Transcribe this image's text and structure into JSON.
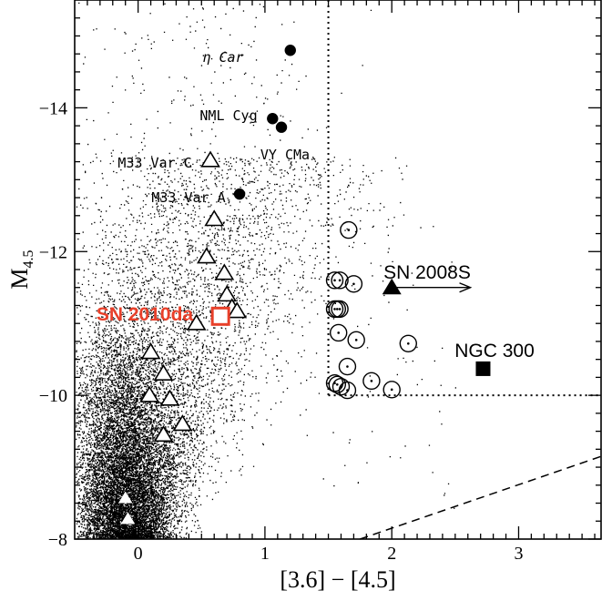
{
  "chart_data": {
    "type": "scatter",
    "xlabel": "[3.6] − [4.5]",
    "ylabel_main": "M",
    "ylabel_sub": "4.5",
    "xlim": [
      -0.5,
      3.65
    ],
    "ylim": [
      -8,
      -15.5
    ],
    "xticks": [
      {
        "value": 0,
        "label": "0"
      },
      {
        "value": 1,
        "label": "1"
      },
      {
        "value": 2,
        "label": "2"
      },
      {
        "value": 3,
        "label": "3"
      }
    ],
    "yticks": [
      {
        "value": -8,
        "label": "−8"
      },
      {
        "value": -10,
        "label": "−10"
      },
      {
        "value": -12,
        "label": "−12"
      },
      {
        "value": -14,
        "label": "−14"
      }
    ],
    "background_population": {
      "marker": "dot",
      "color": "#000000",
      "core_x": -0.12,
      "core_y": -8.4
    },
    "cut_lines": {
      "vertical_x": 1.5,
      "horizontal_y": -10,
      "dashed_line": [
        [
          1.75,
          -8
        ],
        [
          3.65,
          -9.15
        ]
      ]
    },
    "filled_circles": [
      {
        "label": "η Car",
        "x": 1.2,
        "y": -14.8
      },
      {
        "label": "NML Cyg",
        "x": 1.06,
        "y": -13.85
      },
      {
        "label": "VY CMa",
        "x": 1.13,
        "y": -13.73
      },
      {
        "label": "M33 Var A",
        "x": 0.8,
        "y": -12.8
      }
    ],
    "open_triangles": [
      {
        "label": "M33 Var C",
        "x": 0.57,
        "y": -13.27
      },
      {
        "x": 0.6,
        "y": -12.45
      },
      {
        "x": 0.54,
        "y": -11.93
      },
      {
        "x": 0.68,
        "y": -11.7
      },
      {
        "x": 0.7,
        "y": -11.4
      },
      {
        "x": 0.74,
        "y": -11.22
      },
      {
        "x": 0.78,
        "y": -11.17
      },
      {
        "x": 0.46,
        "y": -11.0
      },
      {
        "x": 0.1,
        "y": -10.6
      },
      {
        "x": 0.2,
        "y": -10.3
      },
      {
        "x": 0.09,
        "y": -10.0
      },
      {
        "x": 0.25,
        "y": -9.95
      },
      {
        "x": 0.35,
        "y": -9.6
      },
      {
        "x": 0.2,
        "y": -9.45
      }
    ],
    "filled_triangles_small": [
      {
        "x": -0.1,
        "y": -8.57
      },
      {
        "x": -0.08,
        "y": -8.28
      }
    ],
    "open_circles_dotted": [
      {
        "x": 1.66,
        "y": -12.3
      },
      {
        "x": 1.55,
        "y": -11.6
      },
      {
        "x": 1.59,
        "y": -11.6
      },
      {
        "x": 1.7,
        "y": -11.55
      },
      {
        "x": 1.55,
        "y": -11.2
      },
      {
        "x": 1.57,
        "y": -11.2
      },
      {
        "x": 1.59,
        "y": -11.2
      },
      {
        "x": 1.58,
        "y": -10.87
      },
      {
        "x": 1.72,
        "y": -10.77
      },
      {
        "x": 2.13,
        "y": -10.72
      },
      {
        "x": 1.65,
        "y": -10.4
      },
      {
        "x": 1.55,
        "y": -10.17
      },
      {
        "x": 1.57,
        "y": -10.15
      },
      {
        "x": 1.6,
        "y": -10.12
      },
      {
        "x": 1.84,
        "y": -10.2
      },
      {
        "x": 1.65,
        "y": -10.07
      },
      {
        "x": 2.0,
        "y": -10.08
      }
    ],
    "highlight": {
      "label": "SN 2010da",
      "x": 0.65,
      "y": -11.1,
      "color": "#e8402a"
    },
    "sn2008s": {
      "label": "SN 2008S",
      "x": 2.0,
      "y": -11.5,
      "arrow_to_x": 2.62
    },
    "ngc300": {
      "label": "NGC 300",
      "x": 2.72,
      "y": -10.37
    }
  }
}
